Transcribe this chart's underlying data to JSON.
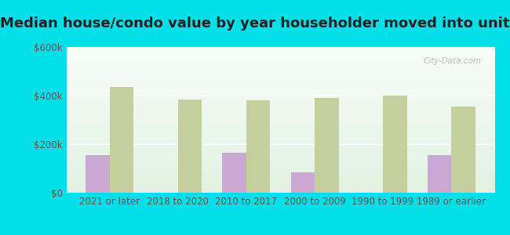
{
  "title": "Median house/condo value by year householder moved into unit",
  "categories": [
    "2021 or later",
    "2018 to 2020",
    "2010 to 2017",
    "2000 to 2009",
    "1990 to 1999",
    "1989 or earlier"
  ],
  "richmondville": [
    155000,
    0,
    165000,
    85000,
    0,
    155000
  ],
  "new_york": [
    435000,
    385000,
    380000,
    390000,
    400000,
    355000
  ],
  "richmondville_color": "#c9a8d4",
  "new_york_color": "#c5cf9e",
  "background_outer": "#00e0e8",
  "ylim": [
    0,
    600000
  ],
  "yticks": [
    0,
    200000,
    400000,
    600000
  ],
  "ytick_labels": [
    "$0",
    "$200k",
    "$400k",
    "$600k"
  ],
  "bar_width": 0.35,
  "title_fontsize": 13,
  "tick_fontsize": 8.5,
  "legend_fontsize": 9.5,
  "watermark": "City-Data.com"
}
